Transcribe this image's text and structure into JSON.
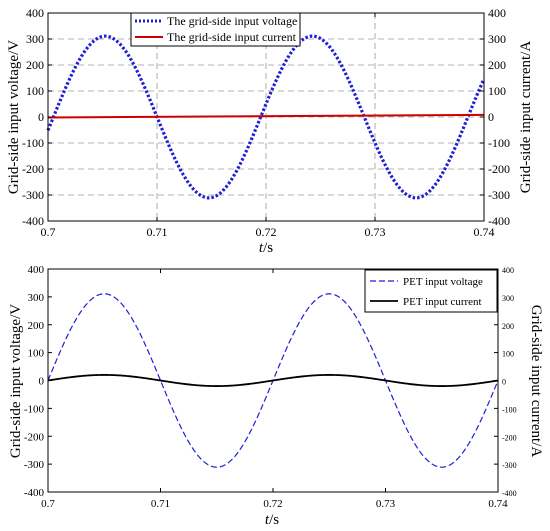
{
  "chart_data": [
    {
      "type": "line",
      "x_range": [
        0.7,
        0.74
      ],
      "x_ticks": [
        "0.7",
        "0.71",
        "0.72",
        "0.73",
        "0.74"
      ],
      "xlabel_italic": "t",
      "xlabel_unit": "/s",
      "ylabel_left": "Grid-side input voltage/V",
      "ylabel_right": "Grid-side input current/A",
      "ylim_left": [
        -400,
        400
      ],
      "ylim_right": [
        -400,
        400
      ],
      "y_ticks_left": [
        "-400",
        "-300",
        "-200",
        "-100",
        "0",
        "100",
        "200",
        "300",
        "400"
      ],
      "y_ticks_right": [
        "-400",
        "-300",
        "-200",
        "-100",
        "0",
        "100",
        "200",
        "300",
        "400"
      ],
      "grid": true,
      "legend_position": "top-center",
      "series": [
        {
          "name": "The grid-side input voltage",
          "axis": "left",
          "style": "dotted",
          "color": "#1f1fd6",
          "amplitude": 311,
          "frequency_hz": 52.6,
          "zero_crossing_x": 0.7005,
          "x": [
            0.7,
            0.74
          ]
        },
        {
          "name": "The grid-side input current",
          "axis": "right",
          "style": "solid",
          "color": "#cc0000",
          "values": [
            [
              0.7,
              -2
            ],
            [
              0.74,
              8
            ]
          ]
        }
      ]
    },
    {
      "type": "line",
      "x_range": [
        0.7,
        0.74
      ],
      "x_ticks": [
        "0.7",
        "0.71",
        "0.72",
        "0.73",
        "0.74"
      ],
      "xlabel_italic": "t",
      "xlabel_unit": "/s",
      "ylabel_left": "Grid-side input voltage/V",
      "ylabel_right": "Grid-side input current/A",
      "ylim_left": [
        -400,
        400
      ],
      "ylim_right": [
        -400,
        400
      ],
      "y_ticks_left": [
        "-400",
        "-300",
        "-200",
        "-100",
        "0",
        "100",
        "200",
        "300",
        "400"
      ],
      "y_ticks_right": [
        "-400",
        "-300",
        "-200",
        "-100",
        "0",
        "100",
        "200",
        "300",
        "400"
      ],
      "grid": false,
      "legend_position": "top-right",
      "series": [
        {
          "name": "PET input voltage",
          "axis": "left",
          "style": "dashed",
          "color": "#1f1fd6",
          "amplitude": 311,
          "frequency_hz": 50,
          "zero_crossing_x": 0.7
        },
        {
          "name": "PET input current",
          "axis": "right",
          "style": "solid",
          "color": "#000000",
          "amplitude": 20,
          "frequency_hz": 50,
          "zero_crossing_x": 0.7
        }
      ]
    }
  ]
}
